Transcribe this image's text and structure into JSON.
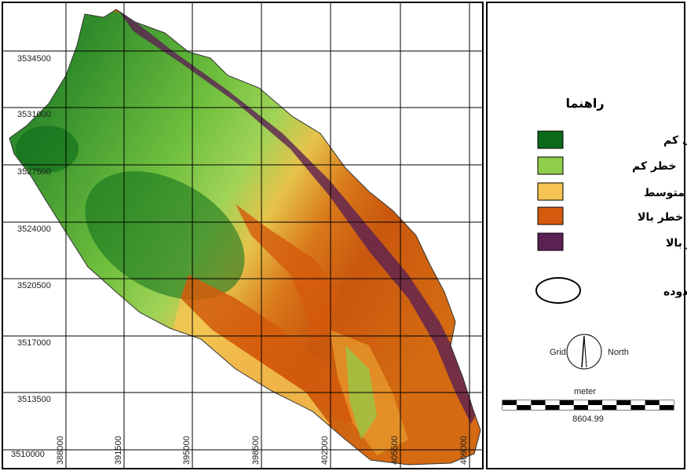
{
  "map": {
    "y_ticks": [
      "3534500",
      "3531000",
      "3527500",
      "3524000",
      "3520500",
      "3517000",
      "3513500",
      "3510000"
    ],
    "x_ticks": [
      "388000",
      "391500",
      "395000",
      "398500",
      "402000",
      "405500",
      "409000"
    ],
    "classes": [
      {
        "key": "very_low",
        "color": "#0b6b1a"
      },
      {
        "key": "low",
        "color": "#8fce4a"
      },
      {
        "key": "medium",
        "color": "#f5c453"
      },
      {
        "key": "high",
        "color": "#d45a0d"
      },
      {
        "key": "very_high",
        "color": "#5b2153"
      }
    ]
  },
  "legend": {
    "title": "راهنما",
    "items": [
      {
        "label": "خطر خیلی کم",
        "color": "#0b6b1a"
      },
      {
        "label": "خطر کم",
        "color": "#8fce4a"
      },
      {
        "label": "خطر متوسط",
        "color": "#f5c453"
      },
      {
        "label": "خطر بالا",
        "color": "#d45a0d"
      },
      {
        "label": "خطر بسیار بالا",
        "color": "#5b2153"
      }
    ],
    "boundary_label": "مرز محدوده"
  },
  "north_arrow": {
    "grid_label": "Grid",
    "north_label": "North"
  },
  "scale_bar": {
    "unit": "meter",
    "value": "8604.99"
  }
}
